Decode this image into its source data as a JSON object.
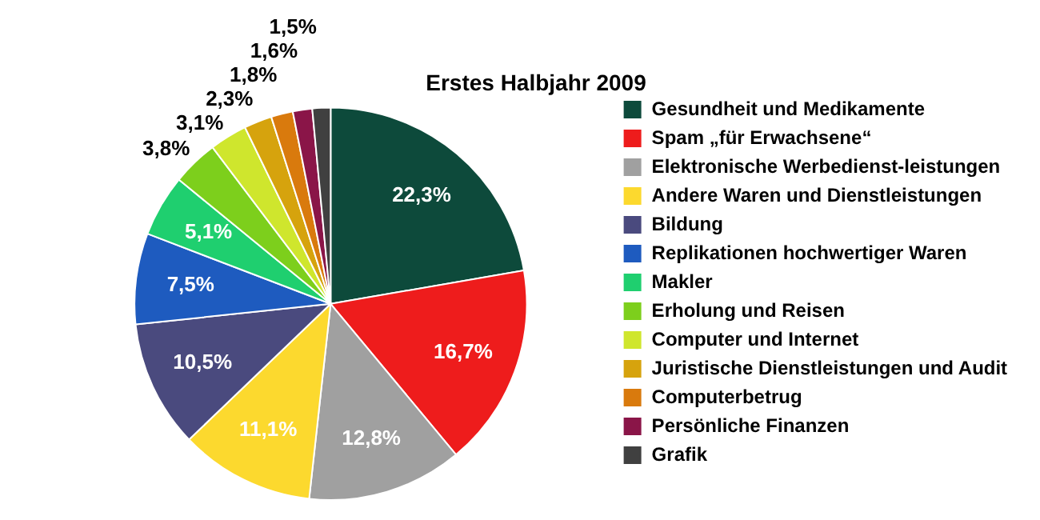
{
  "chart_data": {
    "type": "pie",
    "title": "Erstes Halbjahr 2009",
    "categories": [
      "Gesundheit und Medikamente",
      "Spam „für Erwachsene“",
      "Elektronische Werbedienst-leistungen",
      "Andere Waren und Dienstleistungen",
      "Bildung",
      "Replikationen hochwertiger Waren",
      "Makler",
      "Erholung und Reisen",
      "Computer und Internet",
      "Juristische Dienstleistungen und Audit",
      "Computerbetrug",
      "Persönliche Finanzen",
      "Grafik"
    ],
    "values": [
      22.3,
      16.7,
      12.8,
      11.1,
      10.5,
      7.5,
      5.1,
      3.8,
      3.1,
      2.3,
      1.8,
      1.6,
      1.5
    ],
    "value_labels": [
      "22,3%",
      "16,7%",
      "12,8%",
      "11,1%",
      "10,5%",
      "7,5%",
      "5,1%",
      "3,8%",
      "3,1%",
      "2,3%",
      "1,8%",
      "1,6%",
      "1,5%"
    ],
    "colors": [
      "#0d4a3b",
      "#ee1c1c",
      "#a0a0a0",
      "#fcd92e",
      "#4a4a7e",
      "#1e5bbf",
      "#1fcf6f",
      "#7dcf1c",
      "#cfe62d",
      "#d6a30d",
      "#d97a0d",
      "#8a1548",
      "#404040"
    ],
    "legend": "right"
  }
}
